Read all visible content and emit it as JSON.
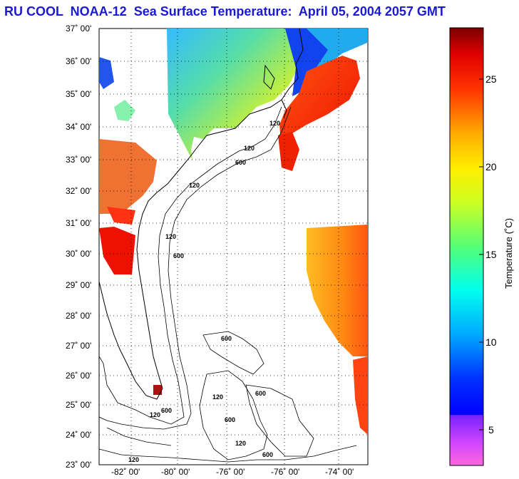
{
  "title": "RU COOL  NOAA-12  Sea Surface Temperature:  April 05, 2004 2057 GMT",
  "map": {
    "lat_labels": [
      "37˚ 00'",
      "36˚ 00'",
      "35˚ 00'",
      "34˚ 00'",
      "33˚ 00'",
      "32˚ 00'",
      "31˚ 00'",
      "30˚ 00'",
      "29˚ 00'",
      "28˚ 00'",
      "27˚ 00'",
      "26˚ 00'",
      "25˚ 00'",
      "24˚ 00'",
      "23˚ 00'"
    ],
    "lon_labels": [
      "-82˚ 00'",
      "-80˚ 00'",
      "-76˚ 00'",
      "-76˚ 00'",
      "-74˚ 00'"
    ],
    "contour_labels": [
      "120",
      "120",
      "600",
      "120",
      "120",
      "600",
      "600",
      "600",
      "120",
      "600",
      "120",
      "600",
      "120",
      "120",
      "600"
    ]
  },
  "colorbar": {
    "title": "Temperature (˚C)",
    "range": [
      3,
      28
    ],
    "ticks": [
      "25",
      "20",
      "15",
      "10",
      "5"
    ]
  }
}
